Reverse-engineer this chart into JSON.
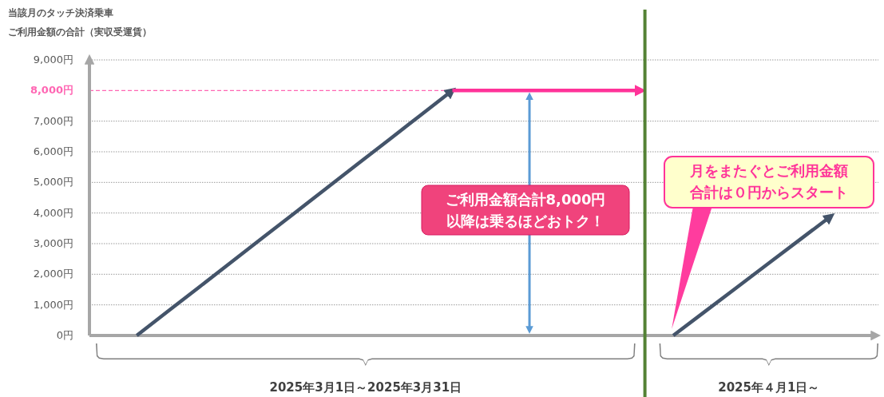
{
  "chart_data": {
    "type": "line",
    "title": "当該月のタッチ決済乗車",
    "subtitle": "ご利用金額の合計（実収受運賃）",
    "categories": [
      null,
      null,
      null,
      null,
      null,
      null,
      null,
      null,
      null,
      null,
      null,
      null,
      null,
      null,
      null,
      null,
      null,
      null,
      null,
      null,
      null,
      null,
      null,
      null,
      null
    ],
    "series": [
      {
        "color": "#44546a",
        "values": [
          null,
          0,
          800,
          1600,
          2400,
          3200,
          4000,
          4800,
          5600,
          6400,
          7200,
          8000,
          null,
          null,
          null,
          null,
          null,
          null,
          null,
          null,
          null,
          null,
          null,
          null,
          null
        ]
      },
      {
        "color": "#ff3399",
        "values": [
          null,
          null,
          null,
          null,
          null,
          null,
          null,
          null,
          null,
          null,
          null,
          8000,
          8000,
          8000,
          8000,
          8000,
          8000,
          8000,
          null,
          null,
          null,
          null,
          null,
          null,
          null
        ]
      },
      {
        "color": "#44546a",
        "values": [
          null,
          null,
          null,
          null,
          null,
          null,
          null,
          null,
          null,
          null,
          null,
          null,
          null,
          null,
          null,
          null,
          null,
          null,
          0,
          780,
          1560,
          2340,
          3120,
          3900,
          null
        ]
      }
    ],
    "ylim": [
      0,
      9000
    ],
    "yticks": [
      {
        "value": 0,
        "label": "0円"
      },
      {
        "value": 1000,
        "label": "1,000円"
      },
      {
        "value": 2000,
        "label": "2,000円"
      },
      {
        "value": 3000,
        "label": "3,000円"
      },
      {
        "value": 4000,
        "label": "4,000円"
      },
      {
        "value": 5000,
        "label": "5,000円"
      },
      {
        "value": 6000,
        "label": "6,000円"
      },
      {
        "value": 7000,
        "label": "7,000円"
      },
      {
        "value": 9000,
        "label": "9,000円"
      }
    ],
    "tick_labels": "y",
    "grid": "y",
    "ref_lines": [
      {
        "axis": "y",
        "value": 8000,
        "label": "8,000円",
        "color": "#ff66b3",
        "line_style": "dashed"
      }
    ],
    "annotations": [
      "ご利用金額合計8,000円以降は乗るほどおトク！",
      "月をまたぐとご利用金額合計は０円からスタート",
      "2025年3月1日～2025年3月31日",
      "2025年４月1日～"
    ]
  }
}
